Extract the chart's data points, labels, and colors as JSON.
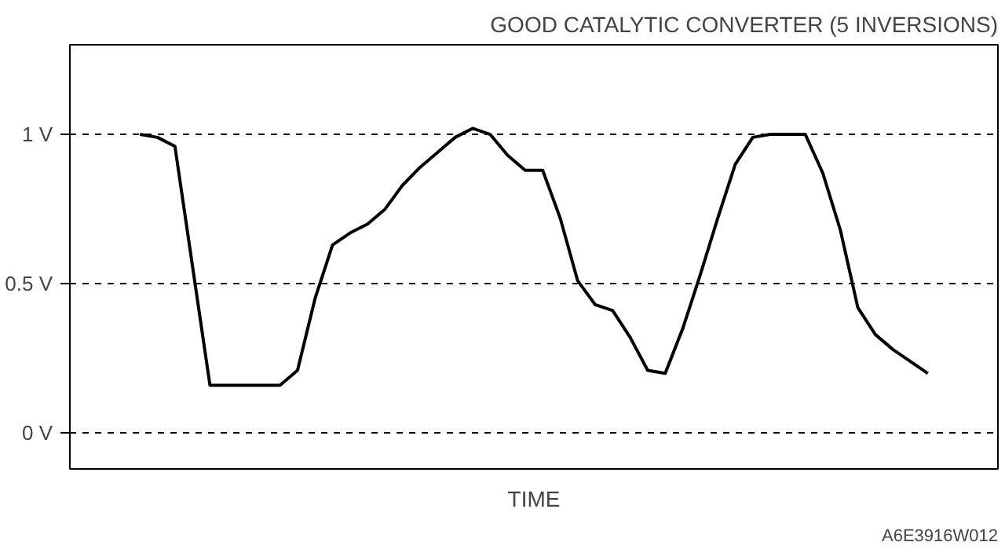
{
  "chart_data": {
    "type": "line",
    "title": "GOOD CATALYTIC CONVERTER (5 INVERSIONS)",
    "xlabel": "TIME",
    "categories": [
      null,
      null,
      null,
      null,
      null,
      null,
      null,
      null,
      null,
      null,
      null,
      null,
      null,
      null,
      null,
      null,
      null,
      null,
      null,
      null,
      null,
      null,
      null,
      null,
      null,
      null,
      null,
      null,
      null,
      null,
      null,
      null,
      null,
      null,
      null,
      null,
      null,
      null,
      null,
      null,
      null,
      null,
      null,
      null,
      null,
      null
    ],
    "values": [
      1.0,
      0.99,
      0.96,
      0.56,
      0.16,
      0.16,
      0.16,
      0.16,
      0.16,
      0.21,
      0.45,
      0.63,
      0.67,
      0.7,
      0.75,
      0.83,
      0.89,
      0.94,
      0.99,
      1.02,
      1.0,
      0.93,
      0.88,
      0.88,
      0.72,
      0.51,
      0.43,
      0.41,
      0.32,
      0.21,
      0.2,
      0.35,
      0.53,
      0.72,
      0.9,
      0.99,
      1.0,
      1.0,
      1.0,
      0.87,
      0.68,
      0.42,
      0.33,
      0.28,
      0.24,
      0.2
    ],
    "color": "#000000",
    "ylim": [
      -0.12,
      1.3
    ],
    "yticks": [
      {
        "value": 0,
        "label": "0 V"
      },
      {
        "value": 0.5,
        "label": "0.5 V"
      },
      {
        "value": 1,
        "label": "1 V"
      }
    ],
    "grid": "y",
    "tick_labels": "y",
    "marker": "none",
    "line_style": "solid",
    "annotations": [
      "A6E3916W012"
    ]
  }
}
